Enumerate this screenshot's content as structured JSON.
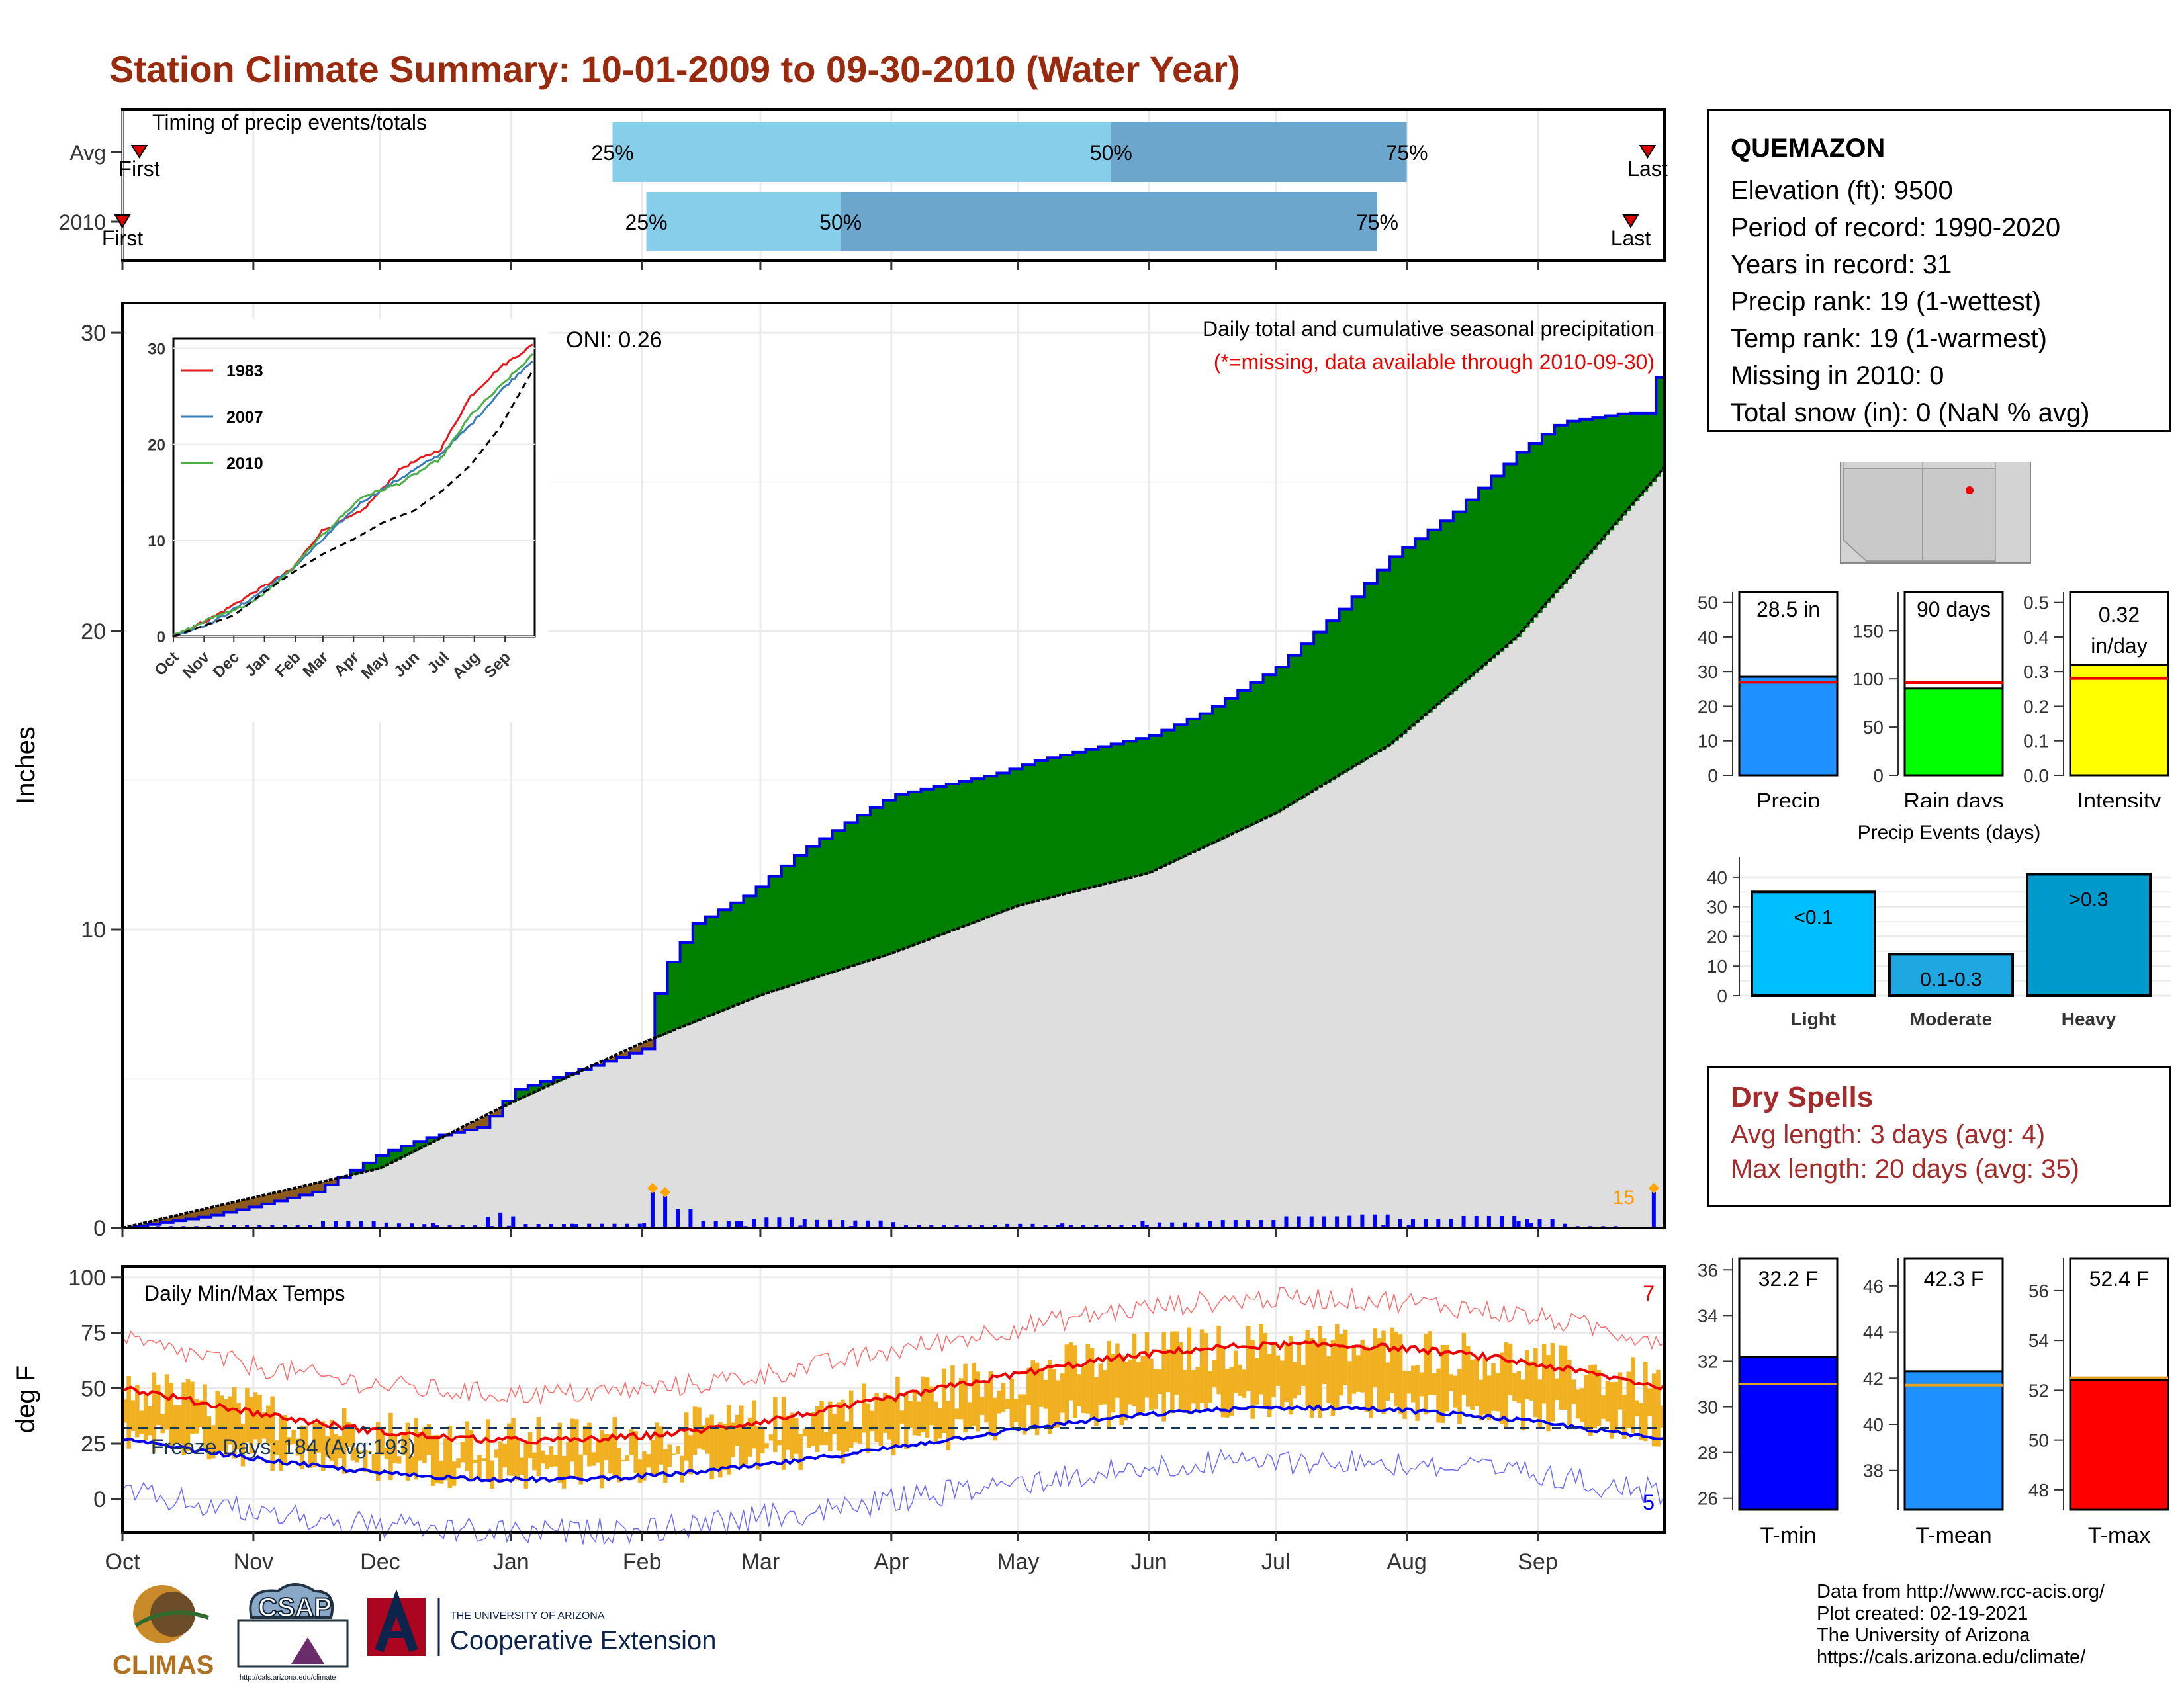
{
  "title": "Station Climate Summary: 10-01-2009 to 09-30-2010 (Water Year)",
  "timing_panel": {
    "label": "Timing of precip events/totals",
    "rows": [
      {
        "name": "Avg",
        "first_label": "First",
        "last_label": "Last",
        "p25_label": "25%",
        "p50_label": "50%",
        "p75_label": "75%",
        "first_day": 4,
        "p25_day": 116,
        "p50_day": 234,
        "p75_day": 304,
        "last_day": 361
      },
      {
        "name": "2010",
        "first_label": "First",
        "last_label": "Last",
        "p25_label": "25%",
        "p50_label": "50%",
        "p75_label": "75%",
        "first_day": 0,
        "p25_day": 124,
        "p50_day": 170,
        "p75_day": 297,
        "last_day": 357
      }
    ],
    "colors": {
      "lower": "#87ceeb",
      "upper": "#6ca6cd",
      "marker": "#dd0000"
    }
  },
  "station": {
    "name": "QUEMAZON",
    "lines": [
      "Elevation (ft): 9500",
      "Period of record: 1990-2020",
      "Years in record: 31",
      "Precip rank: 19 (1-wettest)",
      "Temp rank: 19 (1-warmest)",
      "Missing in 2010: 0",
      "Total snow (in): 0 (NaN % avg)"
    ]
  },
  "precip_panel": {
    "ylabel": "Inches",
    "title_line1": "Daily total and cumulative seasonal precipitation",
    "title_line2": "(*=missing, data available through 2010-09-30)",
    "oni_label": "ONI: 0.26",
    "corner_count": "15",
    "yticks": [
      "0",
      "10",
      "20",
      "30"
    ],
    "ylim": [
      0,
      31
    ]
  },
  "inset": {
    "legend": [
      "1983",
      "2007",
      "2010"
    ],
    "colors": [
      "#e41a1c",
      "#377eb8",
      "#4daf4a"
    ],
    "yticks": [
      "0",
      "10",
      "20",
      "30"
    ],
    "xticks": [
      "Oct",
      "Nov",
      "Dec",
      "Jan",
      "Feb",
      "Mar",
      "Apr",
      "May",
      "Jun",
      "Jul",
      "Aug",
      "Sep"
    ]
  },
  "months": [
    "Oct",
    "Nov",
    "Dec",
    "Jan",
    "Feb",
    "Mar",
    "Apr",
    "May",
    "Jun",
    "Jul",
    "Aug",
    "Sep"
  ],
  "temp_panel": {
    "ylabel": "deg F",
    "label": "Daily Min/Max Temps",
    "freeze_label": "Freeze Days: 184 (Avg:193)",
    "count_high": "7",
    "count_low": "5",
    "yticks": [
      "0",
      "25",
      "50",
      "75",
      "100"
    ],
    "ylim": [
      -15,
      105
    ],
    "freeze_line": 32
  },
  "bars_top": [
    {
      "value_label": "28.5 in",
      "xlabel": "Precip",
      "value": 28.5,
      "avg": 26.9,
      "ymax": 53,
      "yticks": [
        "0",
        "10",
        "20",
        "30",
        "40",
        "50"
      ],
      "color": "#1e90ff"
    },
    {
      "value_label": "90 days",
      "xlabel": "Rain days",
      "value": 90,
      "avg": 96,
      "ymax": 190,
      "yticks": [
        "0",
        "50",
        "100",
        "150"
      ],
      "color": "#00ff00"
    },
    {
      "value_label": "0.32 in/day",
      "value_label_1": "0.32",
      "value_label_2": "in/day",
      "xlabel": "Intensity",
      "value": 0.32,
      "avg": 0.28,
      "ymax": 0.53,
      "yticks": [
        "0.0",
        "0.1",
        "0.2",
        "0.3",
        "0.4",
        "0.5"
      ],
      "color": "#ffff00"
    }
  ],
  "precip_events": {
    "title": "Precip Events (days)",
    "categories": [
      "Light",
      "Moderate",
      "Heavy"
    ],
    "labels": [
      "<0.1",
      "0.1-0.3",
      ">0.3"
    ],
    "values": [
      35,
      14,
      41
    ],
    "yticks": [
      "0",
      "10",
      "20",
      "30",
      "40"
    ],
    "colors": [
      "#00bfff",
      "#1ea7e0",
      "#0099cc"
    ]
  },
  "dry_spells": {
    "heading": "Dry Spells",
    "avg_line": "Avg length: 3 days (avg: 4)",
    "max_line": "Max length: 20 days (avg: 35)"
  },
  "bars_temp": [
    {
      "value_label": "32.2 F",
      "xlabel": "T-min",
      "value": 32.2,
      "avg": 31.0,
      "ylim": [
        25.5,
        36.5
      ],
      "yticks": [
        "26",
        "28",
        "30",
        "32",
        "34",
        "36"
      ],
      "color": "#0000ff"
    },
    {
      "value_label": "42.3 F",
      "xlabel": "T-mean",
      "value": 42.3,
      "avg": 41.7,
      "ylim": [
        36.3,
        47.2
      ],
      "yticks": [
        "38",
        "40",
        "42",
        "44",
        "46"
      ],
      "color": "#1e90ff"
    },
    {
      "value_label": "52.4 F",
      "xlabel": "T-max",
      "value": 52.4,
      "avg": 52.5,
      "ylim": [
        47.2,
        57.3
      ],
      "yticks": [
        "48",
        "50",
        "52",
        "54",
        "56"
      ],
      "color": "#ff0000"
    }
  ],
  "credits": [
    "Data from http://www.rcc-acis.org/",
    "Plot created: 02-19-2021",
    "The University of Arizona",
    "https://cals.arizona.edu/climate/"
  ],
  "logos": {
    "climas": "CLIMAS",
    "csap": "CSAP",
    "csap_url": "http://cals.arizona.edu/climate",
    "ua_small": "THE UNIVERSITY OF ARIZONA",
    "ua_big": "Cooperative Extension"
  }
}
